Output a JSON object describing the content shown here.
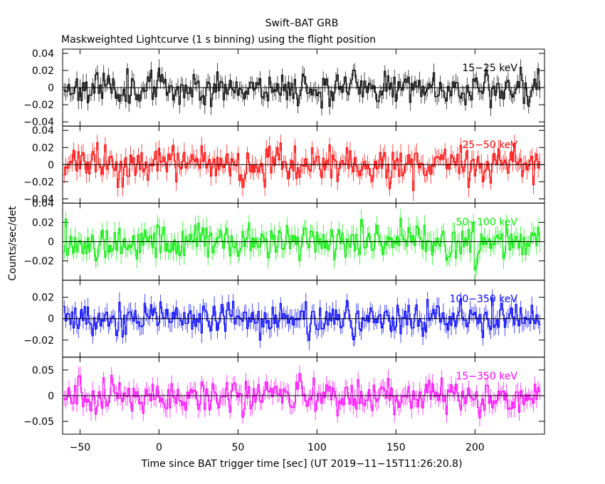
{
  "figure": {
    "title": "Swift–BAT GRB",
    "subtitle": "Maskweighted Lightcurve (1 s binning) using the flight position",
    "xlabel": "Time since BAT trigger time [sec] (UT 2019−11−15T11:26:20.8)",
    "ylabel": "Counts/sec/det"
  },
  "chart_data": {
    "type": "line",
    "x_range": [
      -61,
      244
    ],
    "x_ticks": [
      -50,
      0,
      50,
      100,
      150,
      200
    ],
    "x_tick_labels": [
      "−50",
      "0",
      "50",
      "100",
      "150",
      "200"
    ],
    "x_start": -60,
    "x_end": 241,
    "bin_width_s": 1,
    "panels": [
      {
        "label": "15−25 keV",
        "color": "#000000",
        "ylim": [
          -0.045,
          0.045
        ],
        "y_ticks": [
          0.04,
          0.02,
          0,
          -0.02,
          -0.04
        ],
        "y_tick_labels": [
          "0.04",
          "0.02",
          "0",
          "−0.02",
          "−0.04"
        ],
        "sigma": 0.0095,
        "err": 0.0085,
        "seed": 11
      },
      {
        "label": "25−50 keV",
        "color": "#ff0000",
        "ylim": [
          -0.045,
          0.045
        ],
        "y_ticks": [
          0.04,
          0.02,
          0,
          -0.02,
          -0.04
        ],
        "y_tick_labels": [
          "0.04",
          "0.02",
          "0",
          "−0.02",
          "−0.04"
        ],
        "sigma": 0.0105,
        "err": 0.0095,
        "seed": 23
      },
      {
        "label": "50−100 keV",
        "color": "#00ee00",
        "ylim": [
          -0.04,
          0.04
        ],
        "y_ticks": [
          0.04,
          0.02,
          0,
          -0.02
        ],
        "y_tick_labels": [
          "0.04",
          "0.02",
          "0",
          "−0.02"
        ],
        "sigma": 0.0095,
        "err": 0.009,
        "seed": 37
      },
      {
        "label": "100−350 keV",
        "color": "#0000ff",
        "ylim": [
          -0.036,
          0.036
        ],
        "y_ticks": [
          0.02,
          0,
          -0.02
        ],
        "y_tick_labels": [
          "0.02",
          "0",
          "−0.02"
        ],
        "sigma": 0.008,
        "err": 0.0075,
        "seed": 53
      },
      {
        "label": "15−350 keV",
        "color": "#ff00ff",
        "ylim": [
          -0.075,
          0.075
        ],
        "y_ticks": [
          0.05,
          0,
          -0.05
        ],
        "y_tick_labels": [
          "0.05",
          "0",
          "−0.05"
        ],
        "sigma": 0.017,
        "err": 0.0155,
        "seed": 71
      }
    ]
  }
}
